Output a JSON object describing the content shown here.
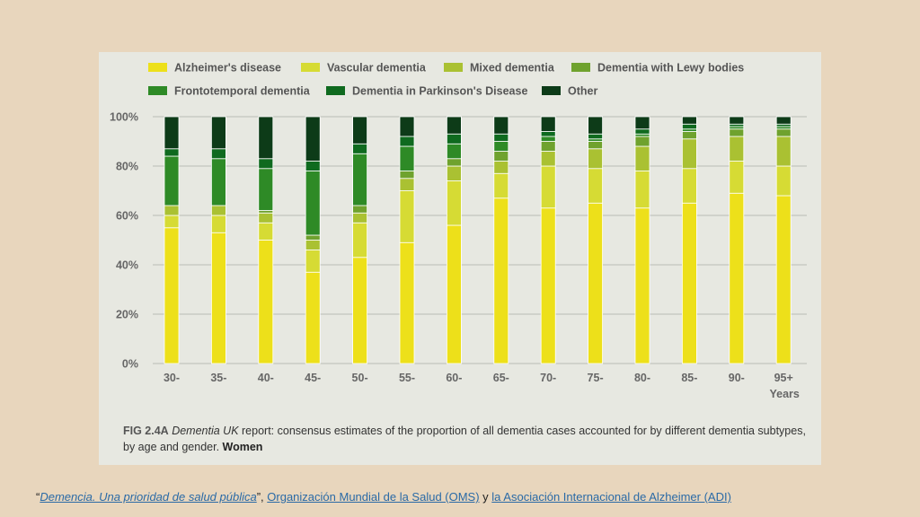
{
  "chart_data": {
    "type": "bar",
    "stacked": true,
    "normalized": true,
    "categories": [
      "30-",
      "35-",
      "40-",
      "45-",
      "50-",
      "55-",
      "60-",
      "65-",
      "70-",
      "75-",
      "80-",
      "85-",
      "90-",
      "95+"
    ],
    "x_extra_label": "Years",
    "yticks": [
      "0%",
      "20%",
      "40%",
      "60%",
      "80%",
      "100%"
    ],
    "ylim": [
      0,
      100
    ],
    "grid": true,
    "legend_position": "top",
    "series": [
      {
        "name": "Alzheimer's disease",
        "color": "#ede01a",
        "values": [
          55,
          53,
          50,
          37,
          43,
          49,
          56,
          67,
          63,
          65,
          63,
          65,
          69,
          68
        ]
      },
      {
        "name": "Vascular dementia",
        "color": "#d6db34",
        "values": [
          5,
          7,
          7,
          9,
          14,
          21,
          18,
          10,
          17,
          14,
          15,
          14,
          13,
          12
        ]
      },
      {
        "name": "Mixed dementia",
        "color": "#aac132",
        "values": [
          4,
          4,
          4,
          4,
          4,
          5,
          6,
          5,
          6,
          8,
          10,
          12,
          10,
          12
        ]
      },
      {
        "name": "Dementia with Lewy bodies",
        "color": "#6fa22e",
        "values": [
          0,
          0,
          1,
          2,
          3,
          3,
          3,
          4,
          4,
          3,
          4,
          3,
          3,
          3
        ]
      },
      {
        "name": "Frontotemporal dementia",
        "color": "#2e8a26",
        "values": [
          20,
          19,
          17,
          26,
          21,
          10,
          6,
          4,
          2,
          1,
          1,
          1,
          1,
          1
        ]
      },
      {
        "name": "Dementia in Parkinson's Disease",
        "color": "#0f6a1f",
        "values": [
          3,
          4,
          4,
          4,
          4,
          4,
          4,
          3,
          2,
          2,
          2,
          2,
          1,
          1
        ]
      },
      {
        "name": "Other",
        "color": "#0d3b18",
        "values": [
          13,
          13,
          17,
          18,
          11,
          8,
          7,
          7,
          6,
          7,
          5,
          3,
          3,
          3
        ]
      }
    ]
  },
  "caption": {
    "fig_label": "FIG 2.4A",
    "report_name": "Dementia UK",
    "text": " report: consensus estimates of the proportion of all dementia cases accounted for by different dementia subtypes, by age and gender. ",
    "bold_end": "Women"
  },
  "source": {
    "open_quote": "“",
    "title": "Demencia. Una prioridad de salud pública",
    "close_quote": "”, ",
    "org1": "Organización Mundial de la Salud (OMS)",
    "joiner": " y ",
    "org2": "la Asociación Internacional de Alzheimer (ADI)"
  }
}
